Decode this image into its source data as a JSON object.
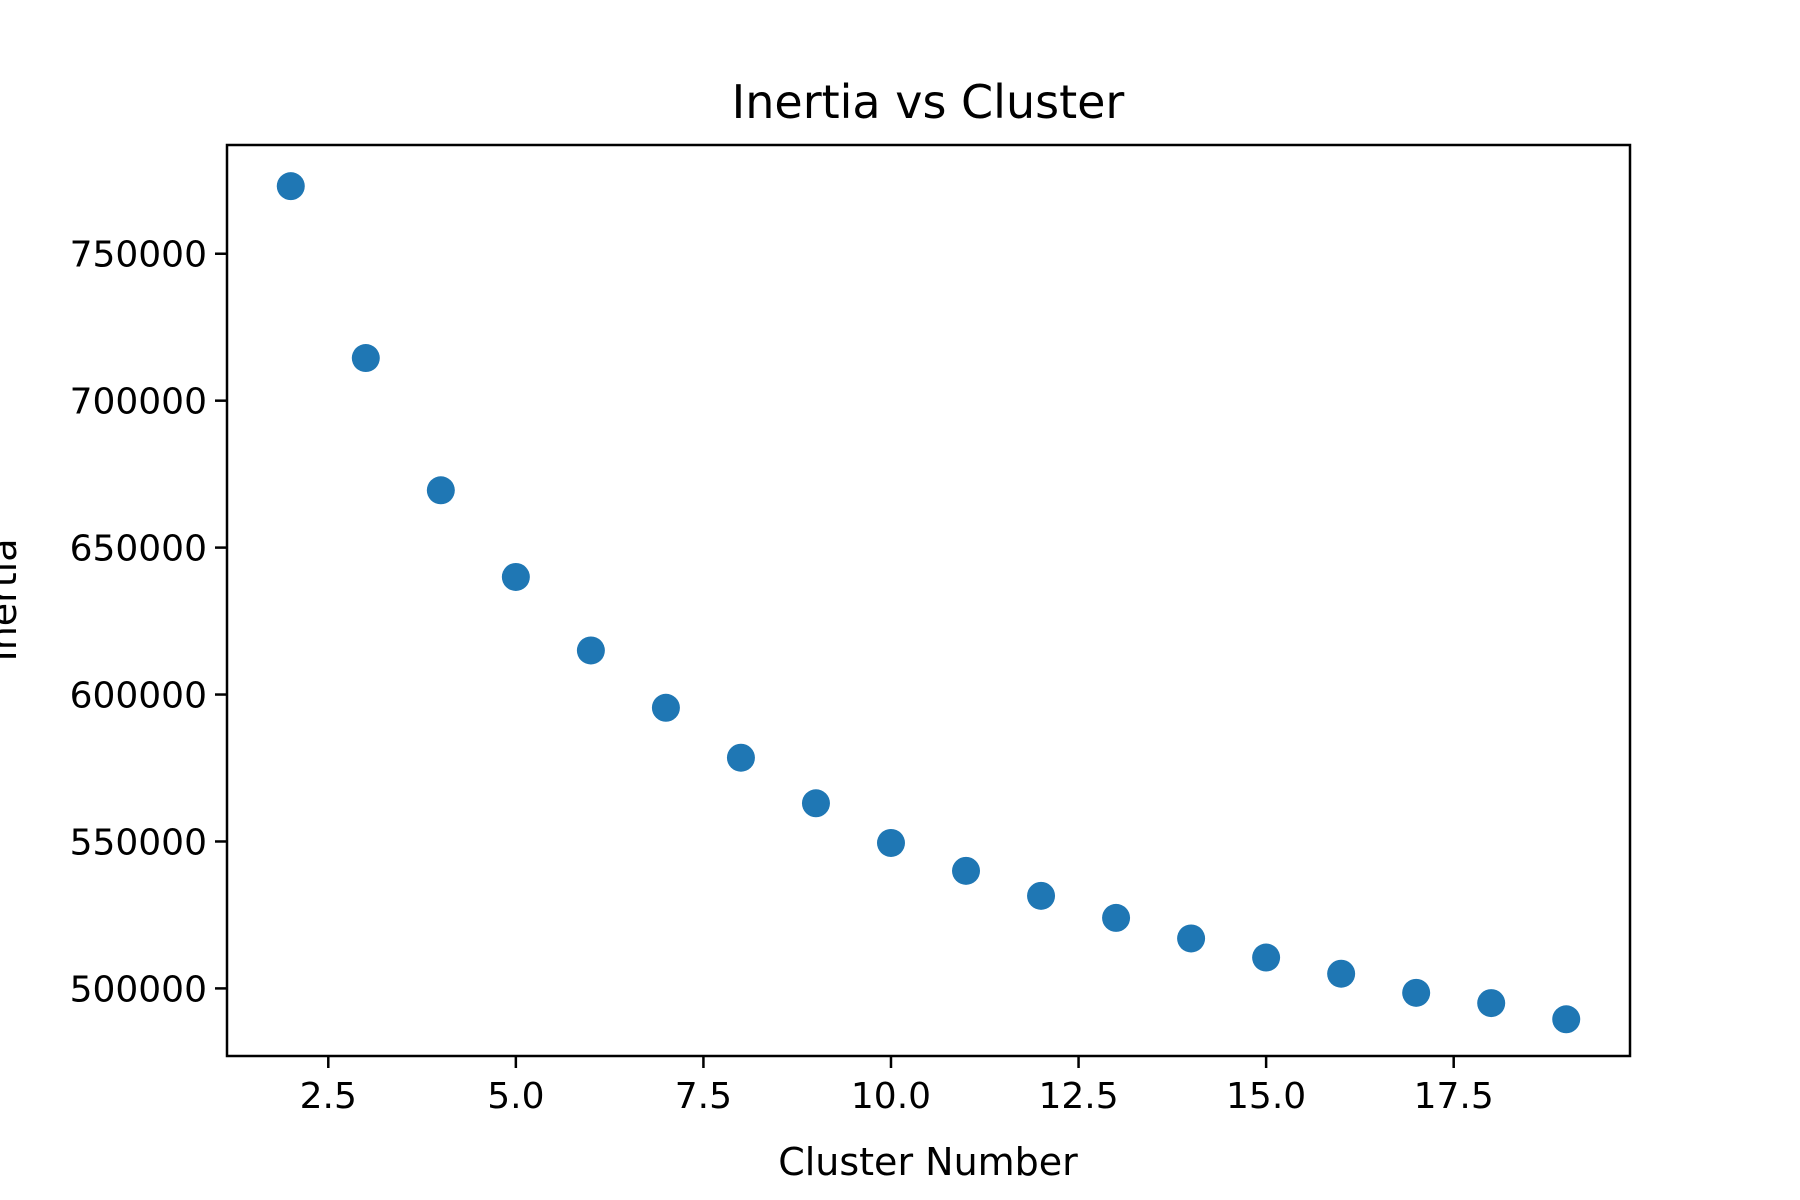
{
  "chart_data": {
    "type": "scatter",
    "title": "Inertia vs Cluster",
    "xlabel": "Cluster Number",
    "ylabel": "Inertia",
    "x": [
      2,
      3,
      4,
      5,
      6,
      7,
      8,
      9,
      10,
      11,
      12,
      13,
      14,
      15,
      16,
      17,
      18,
      19
    ],
    "y": [
      773000,
      714500,
      669500,
      640000,
      615000,
      595500,
      578500,
      563000,
      549500,
      540000,
      531500,
      524000,
      517000,
      510500,
      505000,
      498500,
      495000,
      489500
    ],
    "xlim": [
      1.15,
      19.85
    ],
    "ylim": [
      477000,
      787000
    ],
    "xticks": [
      2.5,
      5.0,
      7.5,
      10.0,
      12.5,
      15.0,
      17.5
    ],
    "xtick_labels": [
      "2.5",
      "5.0",
      "7.5",
      "10.0",
      "12.5",
      "15.0",
      "17.5"
    ],
    "yticks": [
      500000,
      550000,
      600000,
      650000,
      700000,
      750000
    ],
    "ytick_labels": [
      "500000",
      "550000",
      "600000",
      "650000",
      "700000",
      "750000"
    ],
    "grid": false,
    "marker_color": "#1f77b4"
  }
}
